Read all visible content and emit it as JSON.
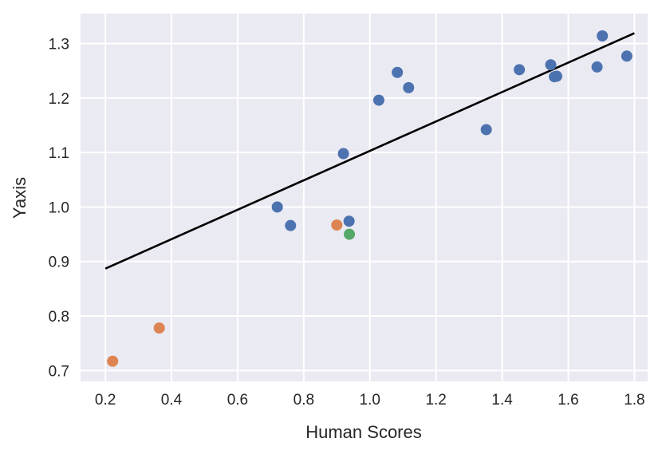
{
  "chart_data": {
    "type": "scatter",
    "title": "",
    "xlabel": "Human Scores",
    "ylabel": "Yaxis",
    "xlim": [
      0.125,
      1.84
    ],
    "ylim": [
      0.68,
      1.355
    ],
    "xticks": [
      0.2,
      0.4,
      0.6,
      0.8,
      1.0,
      1.2,
      1.4,
      1.6,
      1.8
    ],
    "xtick_labels": [
      "0.2",
      "0.4",
      "0.6",
      "0.8",
      "1.0",
      "1.2",
      "1.4",
      "1.6",
      "1.8"
    ],
    "yticks": [
      0.7,
      0.8,
      0.9,
      1.0,
      1.1,
      1.2,
      1.3
    ],
    "ytick_labels": [
      "0.7",
      "0.8",
      "0.9",
      "1.0",
      "1.1",
      "1.2",
      "1.3"
    ],
    "grid": true,
    "background": "#eaeaf2",
    "series": [
      {
        "color": "#4c72b0",
        "points": [
          {
            "x": 0.72,
            "y": 1.0
          },
          {
            "x": 0.76,
            "y": 0.966
          },
          {
            "x": 0.92,
            "y": 1.098
          },
          {
            "x": 0.937,
            "y": 0.974
          },
          {
            "x": 1.027,
            "y": 1.196
          },
          {
            "x": 1.083,
            "y": 1.247
          },
          {
            "x": 1.117,
            "y": 1.219
          },
          {
            "x": 1.352,
            "y": 1.142
          },
          {
            "x": 1.452,
            "y": 1.252
          },
          {
            "x": 1.547,
            "y": 1.261
          },
          {
            "x": 1.558,
            "y": 1.239
          },
          {
            "x": 1.565,
            "y": 1.24
          },
          {
            "x": 1.687,
            "y": 1.257
          },
          {
            "x": 1.703,
            "y": 1.314
          },
          {
            "x": 1.777,
            "y": 1.277
          }
        ]
      },
      {
        "color": "#dd8452",
        "points": [
          {
            "x": 0.222,
            "y": 0.717
          },
          {
            "x": 0.363,
            "y": 0.778
          },
          {
            "x": 0.9,
            "y": 0.967
          }
        ]
      },
      {
        "color": "#55a868",
        "points": [
          {
            "x": 0.938,
            "y": 0.95
          }
        ]
      }
    ],
    "fit_line": {
      "color": "#000000",
      "x": [
        0.2,
        1.8
      ],
      "y": [
        0.887,
        1.319
      ]
    }
  }
}
